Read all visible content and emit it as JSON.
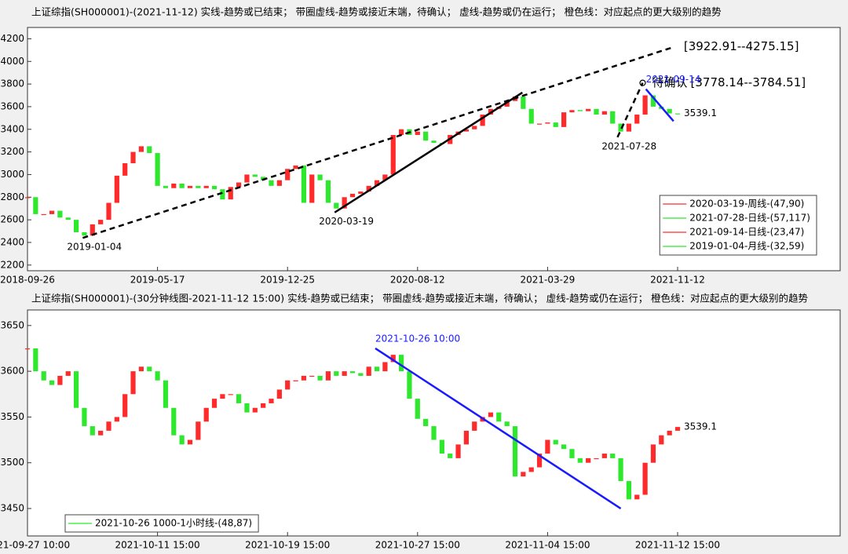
{
  "chart_data": [
    {
      "type": "candlestick",
      "title": "上证综指(SH000001)-(2021-11-12)  实线-趋势或已结束；  带圈虚线-趋势或接近末端，待确认；  虚线-趋势或仍在运行；  橙色线：对应起点的更大级别的趋势",
      "up_color": "#ff2a2a",
      "down_color": "#2ee82e",
      "x": [
        0,
        10,
        20,
        30,
        40,
        50,
        60,
        70,
        80,
        90,
        100,
        110,
        120,
        130,
        140,
        150,
        160,
        170,
        180,
        190,
        200,
        210,
        220,
        230,
        240,
        250,
        260,
        270,
        280,
        290,
        300,
        310,
        320,
        330,
        340,
        350,
        360,
        370,
        380,
        390,
        400,
        410,
        420,
        430,
        440,
        450,
        460,
        470,
        480,
        490,
        500,
        510,
        520,
        530,
        540,
        550,
        560,
        570,
        580,
        590,
        600,
        610,
        620,
        630,
        640,
        650,
        660,
        670,
        680,
        690,
        700,
        710,
        720,
        730,
        740,
        750,
        760,
        770,
        780,
        790,
        800
      ],
      "values": [
        2800,
        2650,
        2650,
        2680,
        2620,
        2600,
        2490,
        2460,
        2560,
        2600,
        2750,
        2990,
        3100,
        3200,
        3250,
        3190,
        2900,
        2880,
        2920,
        2880,
        2900,
        2880,
        2900,
        2870,
        2780,
        2890,
        2930,
        3000,
        2980,
        2950,
        2900,
        2950,
        3050,
        3080,
        2750,
        3000,
        2950,
        2750,
        2700,
        2800,
        2830,
        2850,
        2900,
        2950,
        3000,
        3350,
        3400,
        3350,
        3380,
        3300,
        3280,
        3270,
        3350,
        3380,
        3400,
        3430,
        3530,
        3580,
        3600,
        3650,
        3690,
        3580,
        3450,
        3450,
        3460,
        3420,
        3550,
        3570,
        3560,
        3580,
        3530,
        3560,
        3450,
        3380,
        3450,
        3530,
        3700,
        3600,
        3580,
        3540,
        3539.1
      ],
      "xlim": [
        0,
        1000
      ],
      "ylim": [
        2150,
        4300
      ],
      "xticks": [
        {
          "value": 0,
          "label": "2018-09-26"
        },
        {
          "value": 160,
          "label": "2019-05-17"
        },
        {
          "value": 320,
          "label": "2019-12-25"
        },
        {
          "value": 480,
          "label": "2020-08-12"
        },
        {
          "value": 640,
          "label": "2021-03-29"
        },
        {
          "value": 800,
          "label": "2021-11-12"
        }
      ],
      "yticks": [
        2200,
        2400,
        2600,
        2800,
        3000,
        3200,
        3400,
        3600,
        3800,
        4000,
        4200
      ],
      "trendlines": [
        {
          "style": "dashed",
          "color": "#000000",
          "x": [
            68,
            796
          ],
          "y": [
            2440,
            4129
          ],
          "start_label": "2019-01-04",
          "end_labels": [
            "[3922.91--4275.15]"
          ]
        },
        {
          "style": "solid",
          "color": "#000000",
          "x": [
            378,
            609
          ],
          "y": [
            2665,
            3725
          ],
          "start_label": "2020-03-19"
        },
        {
          "style": "dashed",
          "color": "#000000",
          "marker": "circle",
          "x": [
            726,
            757
          ],
          "y": [
            3330,
            3810
          ],
          "start_label": "2021-07-28",
          "end_labels": [
            "待确认",
            "[3778.14--3784.51]"
          ]
        },
        {
          "style": "solid",
          "color": "#1a1aff",
          "x": [
            761,
            795
          ],
          "y": [
            3755,
            3472
          ],
          "start_label": "2021-09-14"
        }
      ],
      "legend_position": "lower right",
      "legend": [
        {
          "label": "2020-03-19-周线-(47,90)",
          "color": "#ff2a2a"
        },
        {
          "label": "2021-07-28-日线-(57,117)",
          "color": "#2ee82e"
        },
        {
          "label": "2021-09-14-日线-(23,47)",
          "color": "#ff2a2a"
        },
        {
          "label": "2019-01-04-月线-(32,59)",
          "color": "#2ee82e"
        }
      ]
    },
    {
      "type": "candlestick",
      "title": "上证综指(SH000001)-(30分钟线图-2021-11-12 15:00)  实线-趋势或已结束；  带圈虚线-趋势或接近末端，待确认；  虚线-趋势或仍在运行；  橙色线：对应起点的更大级别的趋势",
      "up_color": "#ff2a2a",
      "down_color": "#2ee82e",
      "x": [
        0,
        10,
        20,
        30,
        40,
        50,
        60,
        70,
        80,
        90,
        100,
        110,
        120,
        130,
        140,
        150,
        160,
        170,
        180,
        190,
        200,
        210,
        220,
        230,
        240,
        250,
        260,
        270,
        280,
        290,
        300,
        310,
        320,
        330,
        340,
        350,
        360,
        370,
        380,
        390,
        400,
        410,
        420,
        430,
        440,
        450,
        460,
        470,
        480,
        490,
        500,
        510,
        520,
        530,
        540,
        550,
        560,
        570,
        580,
        590,
        600,
        610,
        620,
        630,
        640,
        650,
        660,
        670,
        680,
        690,
        700,
        710,
        720,
        730,
        740,
        750,
        760,
        770,
        780,
        790,
        800
      ],
      "values": [
        3625,
        3600,
        3590,
        3585,
        3595,
        3600,
        3560,
        3540,
        3530,
        3535,
        3545,
        3550,
        3575,
        3600,
        3605,
        3600,
        3590,
        3560,
        3530,
        3520,
        3525,
        3545,
        3560,
        3570,
        3575,
        3575,
        3565,
        3555,
        3560,
        3565,
        3570,
        3580,
        3590,
        3590,
        3595,
        3595,
        3590,
        3600,
        3595,
        3600,
        3598,
        3595,
        3605,
        3600,
        3610,
        3618,
        3600,
        3570,
        3548,
        3540,
        3525,
        3510,
        3505,
        3520,
        3535,
        3545,
        3550,
        3555,
        3545,
        3540,
        3485,
        3490,
        3495,
        3510,
        3525,
        3520,
        3515,
        3505,
        3500,
        3505,
        3505,
        3510,
        3505,
        3480,
        3460,
        3465,
        3500,
        3520,
        3530,
        3535,
        3539.1
      ],
      "xlim": [
        0,
        1000
      ],
      "ylim": [
        3420,
        3667
      ],
      "xticks": [
        {
          "value": 0,
          "label": "2021-09-27 10:00"
        },
        {
          "value": 160,
          "label": "2021-10-11 15:00"
        },
        {
          "value": 320,
          "label": "2021-10-19 15:00"
        },
        {
          "value": 480,
          "label": "2021-10-27 15:00"
        },
        {
          "value": 640,
          "label": "2021-11-04 15:00"
        },
        {
          "value": 800,
          "label": "2021-11-12 15:00"
        }
      ],
      "yticks": [
        3450,
        3500,
        3550,
        3600,
        3650
      ],
      "trendlines": [
        {
          "style": "solid",
          "color": "#1a1aff",
          "x": [
            428,
            730
          ],
          "y": [
            3625,
            3450
          ],
          "start_label": "2021-10-26 10:00"
        }
      ],
      "legend_position": "lower left",
      "legend": [
        {
          "label": "2021-10-26 1000-1小时线-(48,87)",
          "color": "#2ee82e"
        }
      ]
    }
  ]
}
